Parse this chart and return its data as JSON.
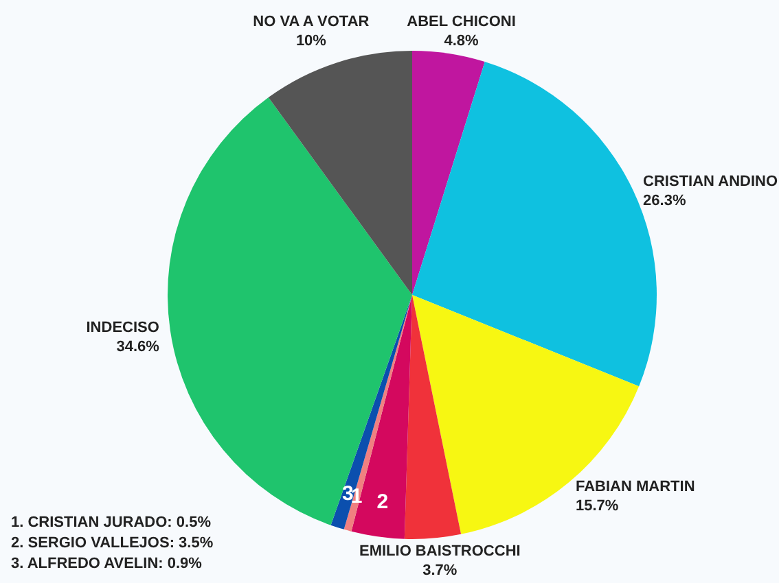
{
  "chart_data": {
    "type": "pie",
    "categories": [
      "ABEL CHICONI",
      "CRISTIAN ANDINO",
      "FABIAN MARTIN",
      "EMILIO BAISTROCCHI",
      "2",
      "1",
      "3",
      "INDECISO",
      "NO VA A VOTAR"
    ],
    "values": [
      4.8,
      26.3,
      15.7,
      3.7,
      3.5,
      0.5,
      0.9,
      34.6,
      10
    ],
    "value_labels": [
      "4.8%",
      "26.3%",
      "15.7%",
      "3.7%",
      null,
      null,
      null,
      "34.6%",
      "10%"
    ],
    "colors": [
      "#c0169f",
      "#0fc1e0",
      "#f7f712",
      "#f0323a",
      "#d4085e",
      "#f08080",
      "#0b4fae",
      "#1fc46d",
      "#555555"
    ],
    "annotations": [
      "1. CRISTIAN JURADO: 0.5%",
      "2. SERGIO VALLEJOS: 3.5%",
      "3. ALFREDO AVELIN: 0.9%"
    ]
  }
}
